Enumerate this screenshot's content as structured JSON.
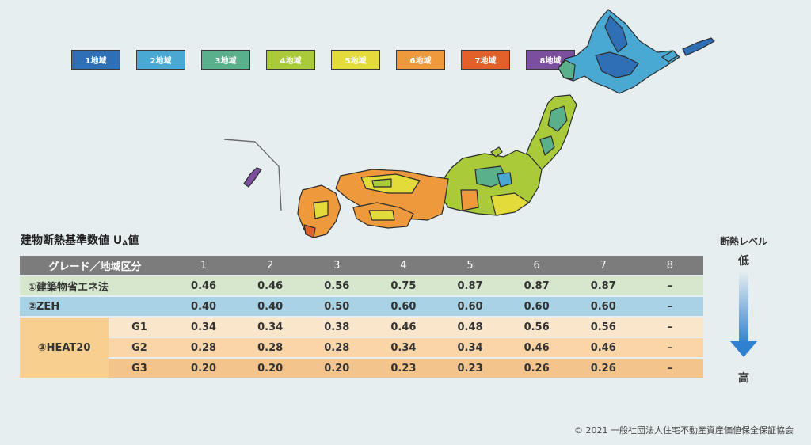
{
  "legend": [
    {
      "label": "1地域",
      "color": "#2e6fb6"
    },
    {
      "label": "2地域",
      "color": "#4aa9d2"
    },
    {
      "label": "3地域",
      "color": "#5ab08a"
    },
    {
      "label": "4地域",
      "color": "#a9cb3a"
    },
    {
      "label": "5地域",
      "color": "#e3db3a"
    },
    {
      "label": "6地域",
      "color": "#ee9a3c"
    },
    {
      "label": "7地域",
      "color": "#e2602a"
    },
    {
      "label": "8地域",
      "color": "#7b4f9e"
    }
  ],
  "table": {
    "title": "建物断熱基準数値 U",
    "title_sub": "A",
    "title_suffix": "値",
    "header_label": "グレード／地域区分",
    "columns": [
      "1",
      "2",
      "3",
      "4",
      "5",
      "6",
      "7",
      "8"
    ],
    "rows": [
      {
        "name": "①建築物省エネ法",
        "values": [
          "0.46",
          "0.46",
          "0.56",
          "0.75",
          "0.87",
          "0.87",
          "0.87",
          "–"
        ]
      },
      {
        "name": "②ZEH",
        "values": [
          "0.40",
          "0.40",
          "0.50",
          "0.60",
          "0.60",
          "0.60",
          "0.60",
          "–"
        ]
      }
    ],
    "heat20": {
      "name": "③HEAT20",
      "grades": [
        {
          "grade": "G1",
          "values": [
            "0.34",
            "0.34",
            "0.38",
            "0.46",
            "0.48",
            "0.56",
            "0.56",
            "–"
          ]
        },
        {
          "grade": "G2",
          "values": [
            "0.28",
            "0.28",
            "0.28",
            "0.34",
            "0.34",
            "0.46",
            "0.46",
            "–"
          ]
        },
        {
          "grade": "G3",
          "values": [
            "0.20",
            "0.20",
            "0.20",
            "0.23",
            "0.23",
            "0.26",
            "0.26",
            "–"
          ]
        }
      ]
    }
  },
  "level": {
    "label": "断熱レベル",
    "low": "低",
    "high": "高"
  },
  "copyright": "© 2021 一般社団法人住宅不動産資産価値保全保証協会"
}
